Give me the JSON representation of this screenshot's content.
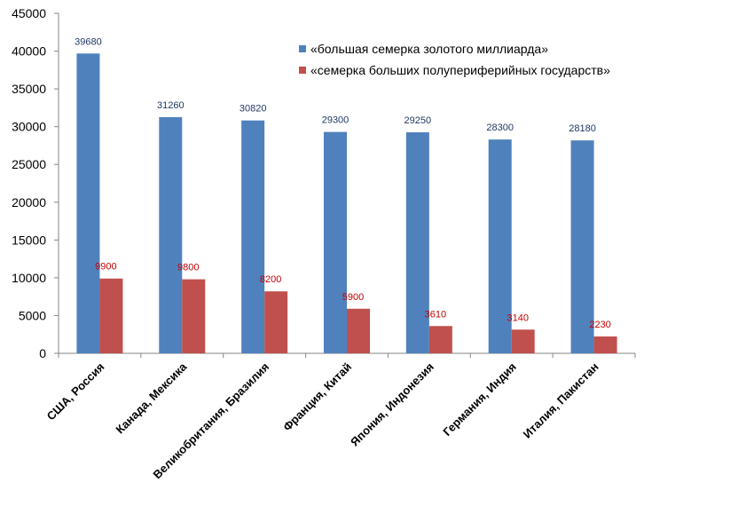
{
  "chart_data": {
    "type": "bar",
    "title": "",
    "xlabel": "",
    "ylabel": "",
    "categories": [
      "США, Россия",
      "Канада, Мексика",
      "Великобритания, Бразилия",
      "Франция, Китай",
      "Япония, Индонезия",
      "Германия, Индия",
      "Италия, Пакистан"
    ],
    "series": [
      {
        "name": "«большая семерка золотого миллиарда»",
        "color": "#4F81BD",
        "label_color": "#1F3864",
        "values": [
          39680,
          31260,
          30820,
          29300,
          29250,
          28300,
          28180
        ]
      },
      {
        "name": "«семерка больших полупериферийных государств»",
        "color": "#C0504D",
        "label_color": "#C00000",
        "values": [
          9900,
          9800,
          8200,
          5900,
          3610,
          3140,
          2230
        ]
      }
    ],
    "ylim": [
      0,
      45000
    ],
    "yticks": [
      0,
      5000,
      10000,
      15000,
      20000,
      25000,
      30000,
      35000,
      40000,
      45000
    ],
    "grid": false,
    "legend_position": "top-right",
    "data_labels": true
  }
}
